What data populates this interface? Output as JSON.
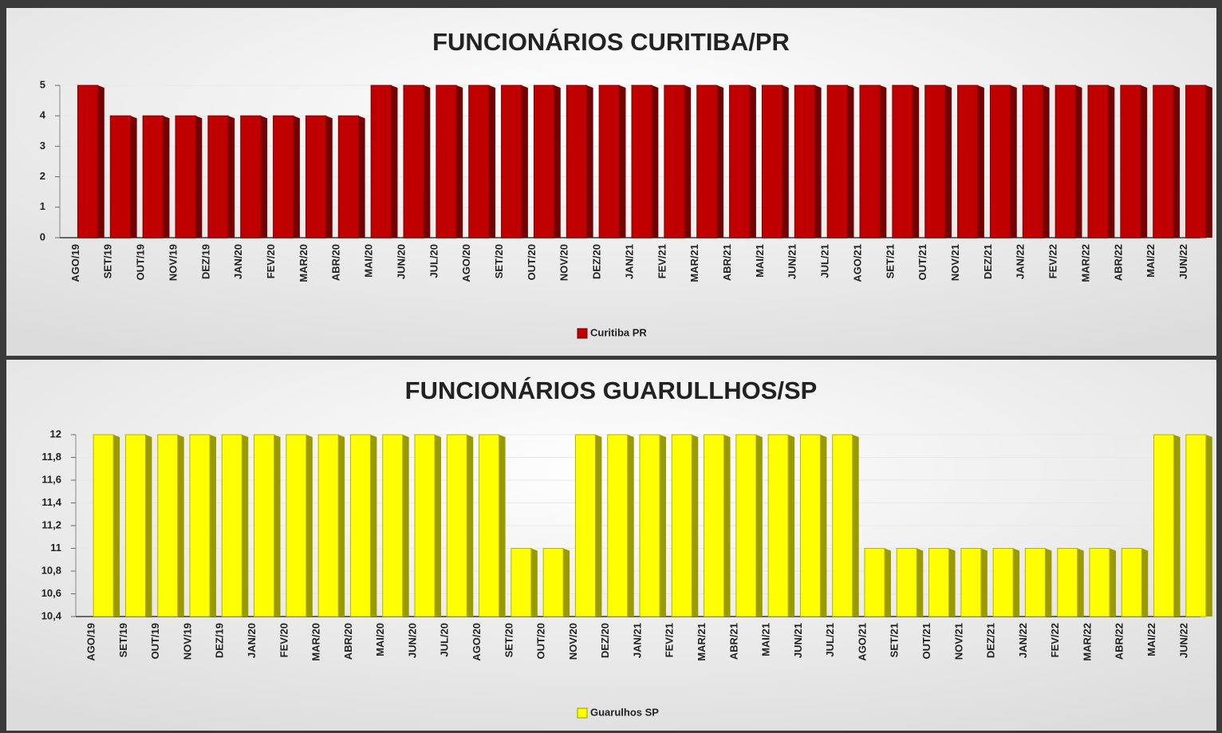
{
  "chart_data": [
    {
      "type": "bar",
      "title": "FUNCIONÁRIOS CURITIBA/PR",
      "categories": [
        "AGO/19",
        "SET/19",
        "OUT/19",
        "NOV/19",
        "DEZ/19",
        "JAN/20",
        "FEV/20",
        "MAR/20",
        "ABR/20",
        "MAI/20",
        "JUN/20",
        "JUL/20",
        "AGO/20",
        "SET/20",
        "OUT/20",
        "NOV/20",
        "DEZ/20",
        "JAN/21",
        "FEV/21",
        "MAR/21",
        "ABR/21",
        "MAI/21",
        "JUN/21",
        "JUL/21",
        "AGO/21",
        "SET/21",
        "OUT/21",
        "NOV/21",
        "DEZ/21",
        "JAN/22",
        "FEV/22",
        "MAR/22",
        "ABR/22",
        "MAI/22",
        "JUN/22"
      ],
      "series": [
        {
          "name": "Curitiba PR",
          "color": "#c00000",
          "values": [
            5,
            4,
            4,
            4,
            4,
            4,
            4,
            4,
            4,
            5,
            5,
            5,
            5,
            5,
            5,
            5,
            5,
            5,
            5,
            5,
            5,
            5,
            5,
            5,
            5,
            5,
            5,
            5,
            5,
            5,
            5,
            5,
            5,
            5,
            5
          ]
        }
      ],
      "ylim": [
        0,
        5
      ],
      "yticks": [
        0,
        1,
        2,
        3,
        4,
        5
      ],
      "legend": "bottom"
    },
    {
      "type": "bar",
      "title": "FUNCIONÁRIOS GUARULLHOS/SP",
      "categories": [
        "AGO/19",
        "SET/19",
        "OUT/19",
        "NOV/19",
        "DEZ/19",
        "JAN/20",
        "FEV/20",
        "MAR/20",
        "ABR/20",
        "MAI/20",
        "JUN/20",
        "JUL/20",
        "AGO/20",
        "SET/20",
        "OUT/20",
        "NOV/20",
        "DEZ/20",
        "JAN/21",
        "FEV/21",
        "MAR/21",
        "ABR/21",
        "MAI/21",
        "JUN/21",
        "JUL/21",
        "AGO/21",
        "SET/21",
        "OUT/21",
        "NOV/21",
        "DEZ/21",
        "JAN/22",
        "FEV/22",
        "MAR/22",
        "ABR/22",
        "MAI/22",
        "JUN/22"
      ],
      "series": [
        {
          "name": "Guarulhos SP",
          "color": "#ffff00",
          "values": [
            12,
            12,
            12,
            12,
            12,
            12,
            12,
            12,
            12,
            12,
            12,
            12,
            12,
            11,
            11,
            12,
            12,
            12,
            12,
            12,
            12,
            12,
            12,
            12,
            11,
            11,
            11,
            11,
            11,
            11,
            11,
            11,
            11,
            12,
            12
          ]
        }
      ],
      "ylim": [
        10.4,
        12
      ],
      "yticks": [
        {
          "value": 10.4,
          "label": "10,4"
        },
        {
          "value": 10.6,
          "label": "10,6"
        },
        {
          "value": 10.8,
          "label": "10,8"
        },
        11,
        {
          "value": 11.2,
          "label": "11,2"
        },
        {
          "value": 11.4,
          "label": "11,4"
        },
        {
          "value": 11.6,
          "label": "11,6"
        },
        {
          "value": 11.8,
          "label": "11,8"
        },
        12
      ],
      "legend": "bottom"
    }
  ]
}
